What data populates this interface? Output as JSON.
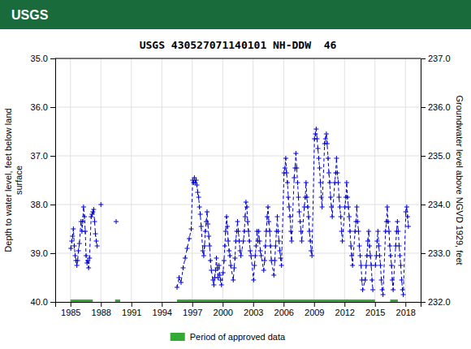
{
  "chart_data": {
    "type": "line",
    "title": "USGS 430527071140101 NH-DDW  46",
    "annotations": [
      {
        "text": "USGS",
        "color": "#1a6b3c"
      }
    ],
    "y_label": "Depth to water level, feet below land\nsurface",
    "y2_label": "Groundwater level above NGVD 1929, feet",
    "xlim": [
      1983.5,
      2019.5
    ],
    "xticks": [
      1985,
      1988,
      1991,
      1994,
      1997,
      2000,
      2003,
      2006,
      2009,
      2012,
      2015,
      2018
    ],
    "ylim": [
      40.0,
      35.0
    ],
    "yticks": [
      {
        "value": 35.0,
        "label": "35.0"
      },
      {
        "value": 36.0,
        "label": "36.0"
      },
      {
        "value": 37.0,
        "label": "37.0"
      },
      {
        "value": 38.0,
        "label": "38.0"
      },
      {
        "value": 39.0,
        "label": "39.0"
      },
      {
        "value": 40.0,
        "label": "40.0"
      }
    ],
    "y2lim": [
      232.0,
      237.0
    ],
    "y2ticks": [
      {
        "value": 232.0,
        "label": "232.0"
      },
      {
        "value": 233.0,
        "label": "233.0"
      },
      {
        "value": 234.0,
        "label": "234.0"
      },
      {
        "value": 235.0,
        "label": "235.0"
      },
      {
        "value": 236.0,
        "label": "236.0"
      },
      {
        "value": 237.0,
        "label": "237.0"
      }
    ],
    "grid": true,
    "legend": "bottom",
    "series": [
      {
        "color": "#0000cc",
        "line_style": "dashed",
        "marker": "plus",
        "x": [
          1985.04,
          1985.13,
          1985.21,
          1985.29,
          1985.38,
          1985.46,
          1985.54,
          1985.63,
          1985.71,
          1985.79,
          1985.88,
          1986.04,
          1986.13,
          1986.21,
          1986.29,
          1986.38,
          1986.46,
          1986.54,
          1986.63,
          1986.71,
          1986.79,
          1986.88,
          1987.04,
          1987.13,
          1987.21,
          1987.29,
          1987.38,
          1987.46,
          1987.54,
          1987.63,
          null,
          1988.0,
          null,
          1989.5,
          null,
          1995.5,
          1995.7,
          1995.9,
          1996.1,
          1996.3,
          1996.5,
          1996.7,
          1996.9,
          1997.04,
          1997.13,
          1997.21,
          1997.29,
          1997.38,
          1997.46,
          1997.54,
          1997.63,
          1997.71,
          1997.79,
          1997.88,
          1998.04,
          1998.13,
          1998.21,
          1998.29,
          1998.38,
          1998.46,
          1998.54,
          1998.63,
          1998.71,
          1998.79,
          1998.88,
          1999.04,
          1999.13,
          1999.21,
          1999.29,
          1999.38,
          1999.46,
          1999.54,
          1999.63,
          1999.71,
          1999.79,
          1999.88,
          2000.04,
          2000.13,
          2000.21,
          2000.29,
          2000.38,
          2000.46,
          2000.54,
          2000.63,
          2000.71,
          2000.79,
          2001.04,
          2001.13,
          2001.21,
          2001.29,
          2001.38,
          2001.46,
          2001.54,
          2001.63,
          2001.71,
          2001.79,
          2002.04,
          2002.13,
          2002.21,
          2002.29,
          2002.38,
          2002.46,
          2002.54,
          2002.63,
          2002.71,
          2002.79,
          2003.04,
          2003.13,
          2003.21,
          2003.29,
          2003.38,
          2003.46,
          2003.54,
          2003.63,
          2003.71,
          2003.79,
          2004.04,
          2004.13,
          2004.21,
          2004.29,
          2004.38,
          2004.46,
          2004.54,
          2004.63,
          2004.71,
          2004.79,
          2005.04,
          2005.13,
          2005.21,
          2005.29,
          2005.38,
          2005.46,
          2005.54,
          2005.63,
          2005.71,
          2005.79,
          2006.04,
          2006.13,
          2006.21,
          2006.29,
          2006.38,
          2006.46,
          2006.54,
          2006.63,
          2006.71,
          2006.79,
          2007.04,
          2007.13,
          2007.21,
          2007.29,
          2007.38,
          2007.46,
          2007.54,
          2007.63,
          2007.71,
          2007.79,
          2008.04,
          2008.13,
          2008.21,
          2008.29,
          2008.38,
          2008.46,
          2008.54,
          2008.63,
          2008.71,
          2008.79,
          2009.04,
          2009.13,
          2009.21,
          2009.29,
          2009.38,
          2009.46,
          2009.54,
          2009.63,
          2009.71,
          2009.79,
          2010.04,
          2010.13,
          2010.21,
          2010.29,
          2010.38,
          2010.46,
          2010.54,
          2010.63,
          2010.71,
          2010.79,
          2011.04,
          2011.13,
          2011.21,
          2011.29,
          2011.38,
          2011.46,
          2011.54,
          2011.63,
          2011.71,
          2011.79,
          2012.04,
          2012.13,
          2012.21,
          2012.29,
          2012.38,
          2012.46,
          2012.54,
          2012.63,
          2012.71,
          2012.79,
          2013.04,
          2013.13,
          2013.21,
          2013.29,
          2013.38,
          2013.46,
          2013.54,
          2013.63,
          2013.71,
          2013.79,
          2014.04,
          2014.13,
          2014.21,
          2014.29,
          2014.38,
          2014.46,
          2014.54,
          2014.63,
          2014.71,
          2014.79,
          null,
          2015.04,
          2015.13,
          2015.21,
          2015.29,
          2015.38,
          2015.46,
          2015.54,
          2015.63,
          2015.71,
          2015.79,
          2016.04,
          2016.13,
          2016.21,
          2016.29,
          2016.38,
          2016.46,
          2016.54,
          2016.63,
          2016.71,
          2016.79,
          2017.04,
          2017.13,
          2017.21,
          2017.29,
          2017.38,
          2017.46,
          2017.54,
          2017.63,
          2017.71,
          2017.79,
          2018.04,
          2018.13,
          2018.21,
          2018.29
        ],
        "values": [
          38.9,
          38.75,
          38.65,
          38.5,
          38.85,
          39.05,
          39.15,
          39.25,
          39.15,
          38.95,
          38.8,
          38.35,
          38.55,
          38.35,
          38.05,
          38.25,
          38.55,
          39.05,
          39.2,
          39.15,
          39.3,
          39.1,
          38.25,
          38.2,
          38.15,
          38.1,
          38.35,
          38.6,
          38.75,
          38.85,
          null,
          38.0,
          null,
          38.35,
          null,
          39.7,
          39.5,
          39.6,
          39.3,
          39.1,
          38.9,
          38.7,
          38.5,
          37.5,
          37.55,
          37.45,
          37.55,
          37.5,
          37.6,
          37.75,
          37.85,
          38.05,
          38.2,
          38.45,
          38.95,
          39.05,
          38.85,
          38.55,
          38.35,
          38.15,
          38.4,
          38.65,
          38.85,
          39.15,
          39.35,
          39.55,
          39.65,
          39.5,
          39.35,
          39.1,
          39.3,
          39.5,
          39.25,
          39.45,
          39.55,
          39.65,
          39.4,
          39.15,
          38.85,
          38.55,
          38.25,
          38.45,
          38.75,
          38.95,
          39.05,
          39.25,
          39.55,
          39.3,
          39.1,
          38.75,
          38.55,
          38.35,
          38.55,
          38.75,
          38.95,
          39.05,
          38.75,
          38.55,
          38.25,
          37.95,
          38.05,
          38.35,
          38.55,
          38.75,
          38.95,
          39.05,
          39.55,
          39.25,
          39.05,
          38.85,
          38.55,
          38.75,
          38.55,
          38.75,
          38.95,
          39.05,
          39.35,
          39.15,
          38.85,
          38.55,
          38.25,
          38.05,
          38.35,
          38.55,
          38.85,
          39.15,
          39.45,
          39.15,
          38.85,
          38.55,
          38.25,
          38.55,
          38.75,
          38.95,
          39.1,
          39.25,
          37.35,
          37.25,
          37.05,
          37.35,
          37.55,
          37.85,
          38.05,
          38.25,
          38.55,
          38.75,
          37.45,
          37.25,
          36.95,
          37.25,
          37.55,
          37.85,
          38.15,
          38.35,
          38.55,
          38.75,
          38.05,
          37.85,
          37.55,
          37.85,
          38.05,
          38.25,
          38.55,
          38.75,
          38.95,
          39.05,
          36.65,
          36.55,
          36.45,
          36.65,
          36.85,
          37.05,
          37.25,
          37.55,
          37.85,
          38.05,
          36.75,
          36.65,
          36.55,
          36.75,
          37.05,
          37.35,
          37.55,
          37.85,
          38.05,
          38.25,
          37.55,
          37.35,
          37.05,
          37.35,
          37.55,
          37.85,
          38.05,
          38.25,
          38.55,
          38.75,
          38.05,
          37.85,
          37.55,
          37.85,
          38.05,
          38.25,
          38.55,
          38.85,
          39.05,
          39.25,
          38.55,
          38.35,
          38.05,
          38.35,
          38.55,
          38.85,
          39.05,
          39.25,
          39.55,
          39.75,
          39.55,
          39.25,
          39.05,
          38.75,
          38.55,
          38.85,
          39.05,
          39.25,
          39.55,
          39.75,
          null,
          39.25,
          39.05,
          38.75,
          38.55,
          38.85,
          39.05,
          39.25,
          39.55,
          39.75,
          39.85,
          38.55,
          38.35,
          38.05,
          38.35,
          38.55,
          38.85,
          39.05,
          39.25,
          39.55,
          39.75,
          38.85,
          38.55,
          38.35,
          38.55,
          38.85,
          39.05,
          39.25,
          39.55,
          39.75,
          39.85,
          38.15,
          38.05,
          38.25,
          38.45
        ]
      },
      {
        "name": "Period of approved data",
        "color": "#33aa33",
        "line_style": "solid",
        "x": [
          1985.0,
          1987.2,
          null,
          1989.4,
          1989.9,
          null,
          1995.5,
          2015.0,
          null,
          2016.5,
          2017.25
        ],
        "values": [
          40.0,
          40.0,
          null,
          40.0,
          40.0,
          null,
          40.0,
          40.0,
          null,
          40.0,
          40.0
        ]
      }
    ]
  }
}
